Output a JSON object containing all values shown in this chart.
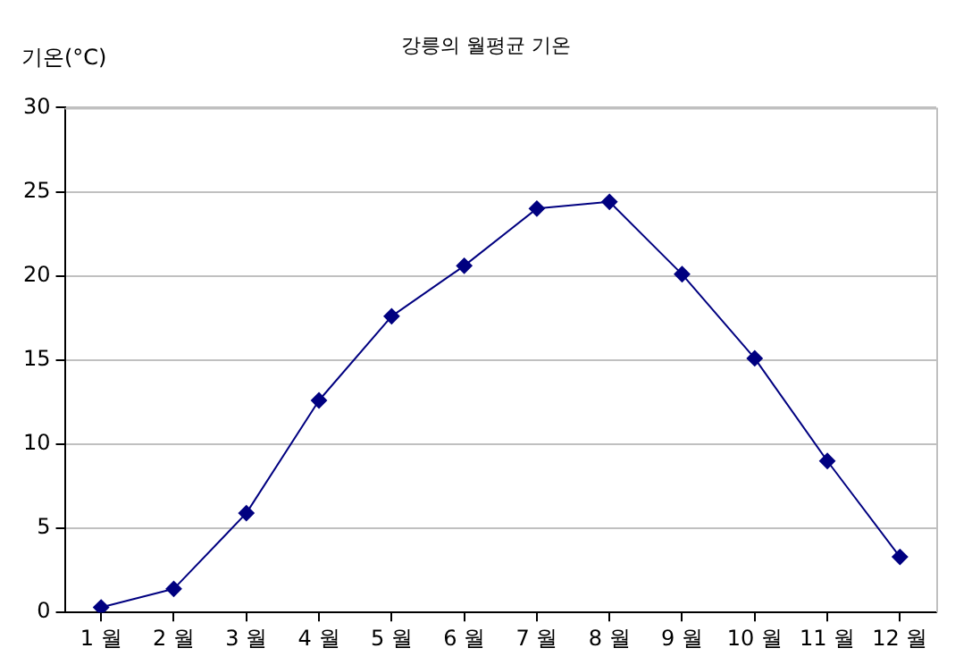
{
  "chart_data": {
    "type": "line",
    "title": "강릉의 월평균 기온",
    "ylabel": "기온(°C)",
    "categories": [
      "1 월",
      "2 월",
      "3 월",
      "4 월",
      "5 월",
      "6 월",
      "7 월",
      "8 월",
      "9 월",
      "10 월",
      "11 월",
      "12 월"
    ],
    "series": [
      {
        "color": "#000080",
        "values": [
          0.3,
          1.4,
          5.9,
          12.6,
          17.6,
          20.6,
          24.0,
          24.4,
          20.1,
          15.1,
          9.0,
          3.3
        ]
      }
    ],
    "ylim": [
      0,
      30
    ],
    "yticks": [
      0,
      5,
      10,
      15,
      20,
      25,
      30
    ],
    "grid": "y",
    "legend": false,
    "marker": "diamond",
    "line_style": "solid"
  }
}
